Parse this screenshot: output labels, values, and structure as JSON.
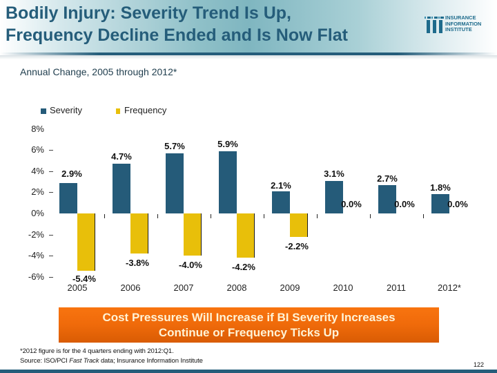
{
  "header": {
    "title_line1": "Bodily Injury: Severity Trend Is Up,",
    "title_line2": "Frequency Decline Ended and Is Now Flat",
    "logo": {
      "icon": "iii-logo-icon",
      "line1": "INSURANCE",
      "line2": "INFORMATION",
      "line3": "INSTITUTE"
    }
  },
  "colors": {
    "severity": "#255b79",
    "frequency": "#e8bf0a",
    "title": "#255d7a",
    "banner": "#ef6a0a"
  },
  "chart_data": {
    "type": "bar",
    "title": "Annual Change, 2005 through 2012*",
    "xlabel": "",
    "ylabel": "",
    "categories": [
      "2005",
      "2006",
      "2007",
      "2008",
      "2009",
      "2010",
      "2011",
      "2012*"
    ],
    "series": [
      {
        "name": "Severity",
        "values": [
          2.9,
          4.7,
          5.7,
          5.9,
          2.1,
          3.1,
          2.7,
          1.8
        ],
        "labels": [
          "2.9%",
          "4.7%",
          "5.7%",
          "5.9%",
          "2.1%",
          "3.1%",
          "2.7%",
          "1.8%"
        ]
      },
      {
        "name": "Frequency",
        "values": [
          -5.4,
          -3.8,
          -4.0,
          -4.2,
          -2.2,
          0.0,
          0.0,
          0.0
        ],
        "labels": [
          "-5.4%",
          "-3.8%",
          "-4.0%",
          "-4.2%",
          "-2.2%",
          "0.0%",
          "0.0%",
          "0.0%"
        ]
      }
    ],
    "ylim": [
      -6,
      8
    ],
    "yticks": [
      8,
      6,
      4,
      2,
      0,
      -2,
      -4,
      -6
    ],
    "ytick_labels": [
      "8%",
      "6%",
      "4%",
      "2%",
      "0%",
      "-2%",
      "-4%",
      "-6%"
    ],
    "grid": false,
    "legend": {
      "position": "top-left",
      "entries": [
        "Severity",
        "Frequency"
      ]
    }
  },
  "banner": {
    "line1": "Cost Pressures Will Increase if BI Severity Increases",
    "line2": "Continue or Frequency Ticks Up"
  },
  "footnotes": {
    "note": "*2012 figure is for the 4 quarters ending with 2012:Q1.",
    "source_prefix": "Source: ISO/PCI ",
    "source_italic": "Fast Track",
    "source_suffix": " data; Insurance Information Institute"
  },
  "page_number": "122"
}
